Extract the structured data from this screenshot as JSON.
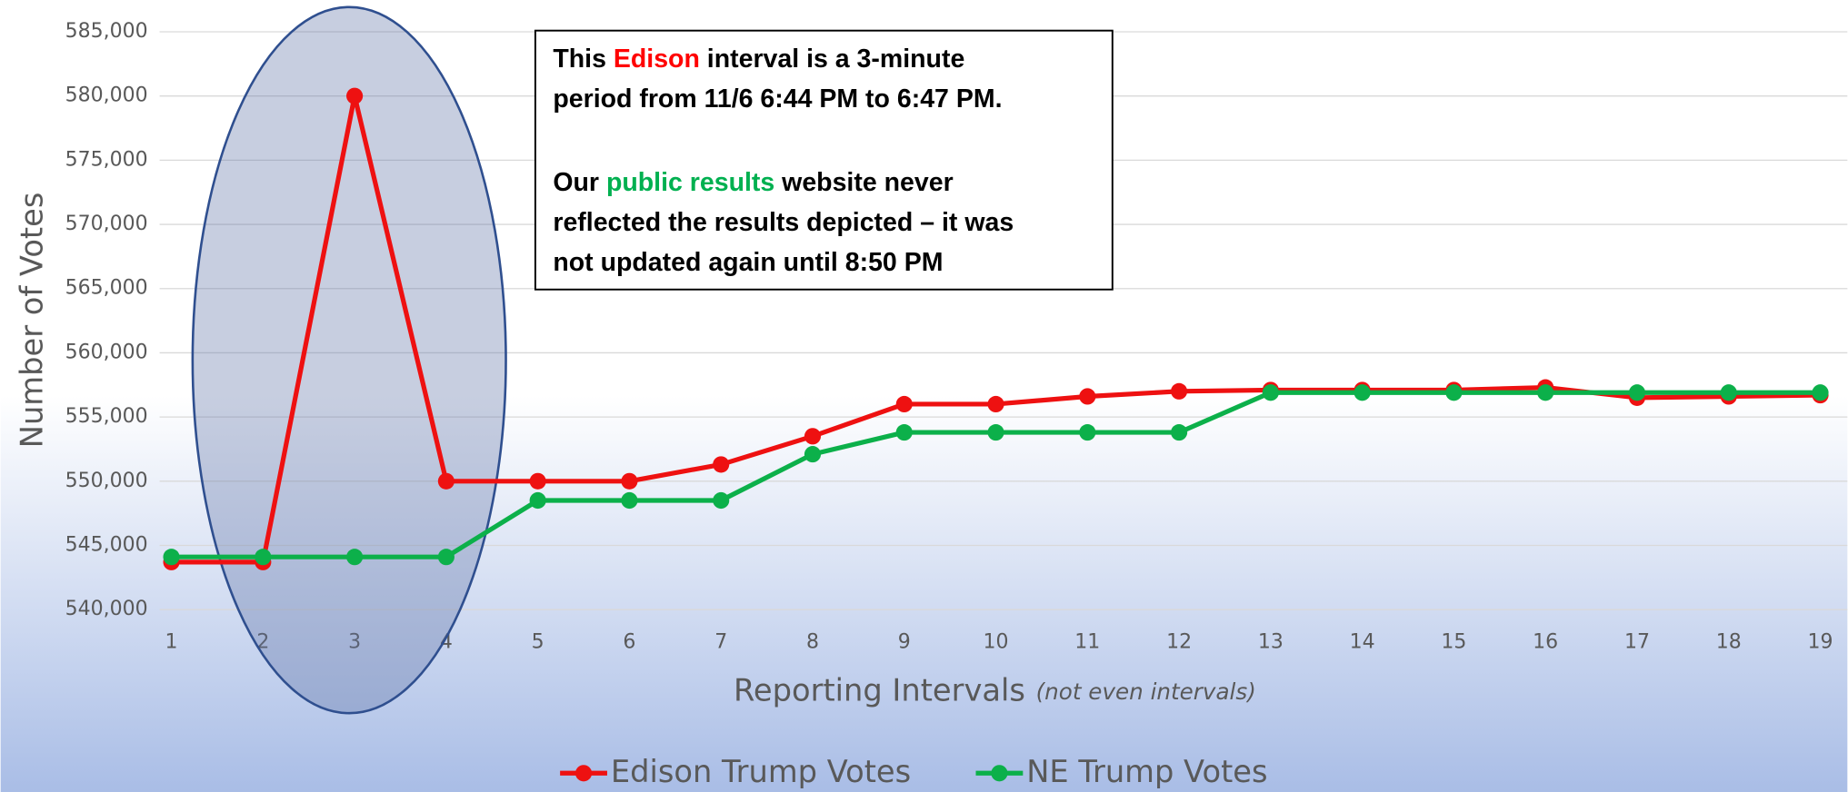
{
  "chart_data": {
    "type": "line",
    "y_label": "Number of Votes",
    "x_label": "Reporting Intervals",
    "x_label_note": "(not even intervals)",
    "categories": [
      "1",
      "2",
      "3",
      "4",
      "5",
      "6",
      "7",
      "8",
      "9",
      "10",
      "11",
      "12",
      "13",
      "14",
      "15",
      "16",
      "17",
      "18",
      "19"
    ],
    "series": [
      {
        "name": "Edison Trump Votes",
        "color": "#ee1111",
        "values": [
          543700,
          543700,
          580000,
          550000,
          550000,
          550000,
          551300,
          553500,
          556000,
          556000,
          556600,
          557000,
          557100,
          557100,
          557100,
          557300,
          556500,
          556600,
          556700
        ]
      },
      {
        "name": "NE Trump Votes",
        "color": "#0cb04a",
        "values": [
          544100,
          544100,
          544100,
          544100,
          548500,
          548500,
          548500,
          552100,
          553800,
          553800,
          553800,
          553800,
          556900,
          556900,
          556900,
          556900,
          556900,
          556900,
          556900
        ]
      }
    ],
    "ylim": [
      540000,
      585000
    ],
    "yticks": [
      {
        "value": 540000,
        "label": "540,000"
      },
      {
        "value": 545000,
        "label": "545,000"
      },
      {
        "value": 550000,
        "label": "550,000"
      },
      {
        "value": 555000,
        "label": "555,000"
      },
      {
        "value": 560000,
        "label": "560,000"
      },
      {
        "value": 565000,
        "label": "565,000"
      },
      {
        "value": 570000,
        "label": "570,000"
      },
      {
        "value": 575000,
        "label": "575,000"
      },
      {
        "value": 580000,
        "label": "580,000"
      },
      {
        "value": 585000,
        "label": "585,000"
      }
    ],
    "grid": true,
    "legend": "bottom",
    "annotation": {
      "paragraphs": [
        [
          [
            {
              "text": "This "
            },
            {
              "text": "Edison",
              "color": "#ff0000"
            },
            {
              "text": " interval is a 3-minute"
            }
          ],
          [
            {
              "text": "period from 11/6 6:44 PM to 6:47 PM."
            }
          ]
        ],
        [
          [
            {
              "text": "Our "
            },
            {
              "text": "public results",
              "color": "#00b050"
            },
            {
              "text": " website never"
            }
          ],
          [
            {
              "text": "reflected the results depicted – it was"
            }
          ],
          [
            {
              "text": "not updated again until 8:50 PM"
            }
          ]
        ]
      ]
    }
  }
}
